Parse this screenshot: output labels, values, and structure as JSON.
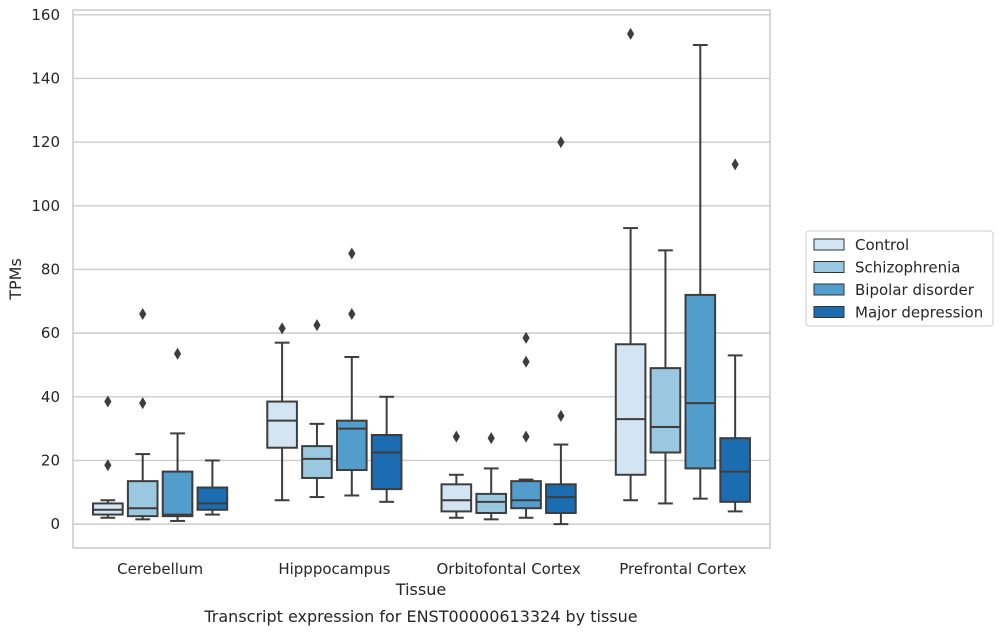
{
  "caption": "Transcript expression for ENST00000613324 by tissue",
  "chart_data": {
    "type": "boxplot",
    "title": "",
    "xlabel": "Tissue",
    "ylabel": "TPMs",
    "ylim": [
      -7.5,
      161.5
    ],
    "yticks": [
      0,
      20,
      40,
      60,
      80,
      100,
      120,
      140,
      160
    ],
    "grid": true,
    "legend_position": "right",
    "categories": [
      "Cerebellum",
      "Hipppocampus",
      "Orbitofontal Cortex",
      "Prefrontal Cortex"
    ],
    "series": [
      {
        "name": "Control",
        "color": "#d3e4f3",
        "boxes": [
          {
            "whislo": 2,
            "q1": 3,
            "med": 4.5,
            "q3": 6.5,
            "whishi": 7.5,
            "fliers": [
              18.5,
              38.5
            ]
          },
          {
            "whislo": 7.5,
            "q1": 24,
            "med": 32.5,
            "q3": 38.5,
            "whishi": 57,
            "fliers": [
              61.5
            ]
          },
          {
            "whislo": 2,
            "q1": 4,
            "med": 7.5,
            "q3": 12.5,
            "whishi": 15.5,
            "fliers": [
              27.5
            ]
          },
          {
            "whislo": 7.5,
            "q1": 15.5,
            "med": 33,
            "q3": 56.5,
            "whishi": 93,
            "fliers": [
              154
            ]
          }
        ]
      },
      {
        "name": "Schizophrenia",
        "color": "#9ac8e0",
        "boxes": [
          {
            "whislo": 1.5,
            "q1": 2.5,
            "med": 5,
            "q3": 13.5,
            "whishi": 22,
            "fliers": [
              38,
              66
            ]
          },
          {
            "whislo": 8.5,
            "q1": 14.5,
            "med": 20.5,
            "q3": 24.5,
            "whishi": 31.5,
            "fliers": [
              62.5
            ]
          },
          {
            "whislo": 1.5,
            "q1": 3.5,
            "med": 7,
            "q3": 9.5,
            "whishi": 17.5,
            "fliers": [
              27
            ]
          },
          {
            "whislo": 6.5,
            "q1": 22.5,
            "med": 30.5,
            "q3": 49,
            "whishi": 86,
            "fliers": []
          }
        ]
      },
      {
        "name": "Bipolar disorder",
        "color": "#529dcc",
        "boxes": [
          {
            "whislo": 1,
            "q1": 2.5,
            "med": 3,
            "q3": 16.5,
            "whishi": 28.5,
            "fliers": [
              53.5
            ]
          },
          {
            "whislo": 9,
            "q1": 17,
            "med": 30,
            "q3": 32.5,
            "whishi": 52.5,
            "fliers": [
              66,
              85
            ]
          },
          {
            "whislo": 2,
            "q1": 5,
            "med": 7.5,
            "q3": 13.5,
            "whishi": 14,
            "fliers": [
              27.5,
              51,
              58.5
            ]
          },
          {
            "whislo": 8,
            "q1": 17.5,
            "med": 38,
            "q3": 72,
            "whishi": 150.5,
            "fliers": []
          }
        ]
      },
      {
        "name": "Major depression",
        "color": "#1c6cb1",
        "boxes": [
          {
            "whislo": 3,
            "q1": 4.5,
            "med": 6.5,
            "q3": 11.5,
            "whishi": 20,
            "fliers": []
          },
          {
            "whislo": 7,
            "q1": 11,
            "med": 22.5,
            "q3": 28,
            "whishi": 40,
            "fliers": []
          },
          {
            "whislo": 0,
            "q1": 3.5,
            "med": 8.5,
            "q3": 12.5,
            "whishi": 25,
            "fliers": [
              34,
              120
            ]
          },
          {
            "whislo": 4,
            "q1": 7,
            "med": 16.5,
            "q3": 27,
            "whishi": 53,
            "fliers": [
              113
            ]
          }
        ]
      }
    ]
  }
}
